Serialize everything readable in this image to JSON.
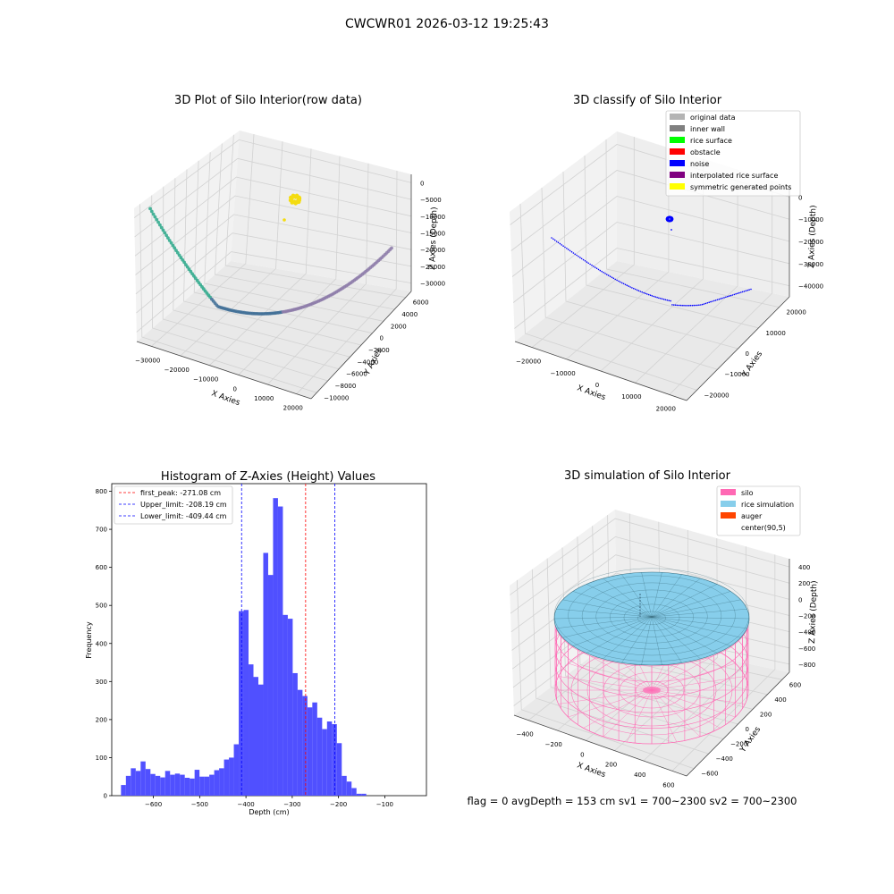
{
  "suptitle": "CWCWR01 2026-03-12 19:25:43",
  "footer": "flag = 0     avgDepth = 153 cm  sv1 = 700~2300  sv2 = 700~2300",
  "colors": {
    "hist_bar": "#4c4cff",
    "first_peak": "#ff0000",
    "limit_line": "#0000ff",
    "pane": "#f2f2f2",
    "silo": "#ff69b4",
    "rice": "#87ceeb",
    "auger": "#ff4500",
    "inner_wall": "#808080",
    "rice_surface": "#00ff00",
    "obstacle": "#ff0000",
    "noise": "#0000ff",
    "interpolated": "#800080",
    "symmetric": "#ffff00",
    "original": "#b4b4b4"
  },
  "chart_data": [
    {
      "type": "scatter",
      "title": "3D Plot of Silo Interior(row data)",
      "xlabel": "X Axies",
      "ylabel": "Y Axies",
      "zlabel": "Z Axies (Depth)",
      "xticks": [
        "−30000",
        "−20000",
        "−10000",
        "0",
        "10000",
        "20000"
      ],
      "yticks": [
        "−10000",
        "−8000",
        "−6000",
        "−4000",
        "−2000",
        "0",
        "2000",
        "4000",
        "6000"
      ],
      "zticks": [
        "0",
        "−5000",
        "−10000",
        "−15000",
        "−20000",
        "−25000",
        "−30000"
      ],
      "xlim": [
        -30000,
        20000
      ],
      "ylim": [
        -10000,
        6000
      ],
      "zlim": [
        -32000,
        0
      ],
      "series": [
        {
          "points": [
            [
              -30000,
              -6000,
              -8000
            ],
            [
              -26000,
              -5200,
              -11500
            ],
            [
              -22000,
              -4300,
              -14200
            ],
            [
              -18000,
              -3300,
              -16200
            ],
            [
              -14000,
              -2200,
              -17700
            ],
            [
              -10000,
              -1000,
              -18600
            ],
            [
              -6000,
              200,
              -19000
            ],
            [
              -2000,
              1400,
              -18900
            ],
            [
              2000,
              2600,
              -18400
            ],
            [
              6000,
              3700,
              -17400
            ],
            [
              10000,
              4700,
              -16000
            ],
            [
              14000,
              5600,
              -14000
            ],
            [
              18000,
              6300,
              -11500
            ]
          ]
        },
        {
          "points": [
            [
              -1500,
              4500,
              -1800
            ],
            [
              -3500,
              3500,
              -5000
            ]
          ]
        }
      ]
    },
    {
      "type": "scatter",
      "title": "3D classify of Silo Interior",
      "xlabel": "X Axies",
      "ylabel": "Y Axies",
      "zlabel": "Z Axies (Depth)",
      "xticks": [
        "−20000",
        "−10000",
        "0",
        "10000",
        "20000"
      ],
      "yticks": [
        "−20000",
        "−10000",
        "0",
        "10000",
        "20000"
      ],
      "zticks": [
        "0",
        "−10000",
        "−20000",
        "−30000",
        "−40000"
      ],
      "xlim": [
        -25000,
        20000
      ],
      "ylim": [
        -25000,
        25000
      ],
      "zlim": [
        -42000,
        0
      ],
      "legend": [
        "original data",
        "inner wall",
        "rice surface",
        "obstacle",
        "noise",
        "interpolated rice surface",
        "symmetric generated points"
      ],
      "legend_loc": "upper right",
      "series": [
        {
          "name": "noise",
          "points": [
            [
              -24000,
              -6000,
              -14000
            ],
            [
              -20000,
              -3000,
              -17000
            ],
            [
              -16000,
              0,
              -19500
            ],
            [
              -12000,
              3000,
              -21500
            ],
            [
              -8000,
              6000,
              -23000
            ],
            [
              -4000,
              9000,
              -24000
            ],
            [
              0,
              12000,
              -24500
            ],
            [
              4000,
              15000,
              -24300
            ],
            [
              8000,
              18000,
              -23500
            ],
            [
              12000,
              21000,
              -22000
            ],
            [
              16000,
              24000,
              -20000
            ]
          ]
        }
      ]
    },
    {
      "type": "bar",
      "title": "Histogram of Z-Axies (Height) Values",
      "xlabel": "Depth (cm)",
      "ylabel": "Frequency",
      "xlim": [
        -690,
        -10
      ],
      "ylim": [
        0,
        820
      ],
      "bin_start": -670,
      "bin_width": 10.6,
      "values": [
        28,
        52,
        72,
        65,
        90,
        70,
        57,
        52,
        48,
        65,
        55,
        58,
        55,
        47,
        45,
        68,
        50,
        50,
        55,
        67,
        72,
        95,
        100,
        135,
        485,
        488,
        345,
        312,
        292,
        638,
        580,
        782,
        760,
        475,
        465,
        322,
        278,
        262,
        232,
        245,
        205,
        175,
        195,
        188,
        138,
        52,
        37,
        20,
        5,
        5
      ],
      "xticks": [
        -600,
        -500,
        -400,
        -300,
        -200,
        -100
      ],
      "yticks": [
        0,
        100,
        200,
        300,
        400,
        500,
        600,
        700,
        800
      ],
      "lines": [
        {
          "label": "first_peak: -271.08 cm",
          "x": -271.08,
          "color": "#ff0000"
        },
        {
          "label": "Upper_limit: -208.19 cm",
          "x": -208.19,
          "color": "#0000ff"
        },
        {
          "label": "Lower_limit: -409.44 cm",
          "x": -409.44,
          "color": "#0000ff"
        }
      ],
      "legend_loc": "upper left"
    },
    {
      "type": "surface",
      "title": "3D simulation of Silo Interior",
      "xlabel": "X Axies",
      "ylabel": "Y Axies",
      "zlabel": "Z Axies (Depth)",
      "xticks": [
        "−400",
        "−200",
        "0",
        "200",
        "400",
        "600"
      ],
      "yticks": [
        "−600",
        "−400",
        "−200",
        "0",
        "200",
        "400",
        "600"
      ],
      "zticks": [
        "400",
        "200",
        "0",
        "−200",
        "−400",
        "−600",
        "−800"
      ],
      "legend": [
        "silo",
        "rice simulation",
        "auger",
        "center(90,5)"
      ],
      "legend_loc": "upper right"
    }
  ]
}
